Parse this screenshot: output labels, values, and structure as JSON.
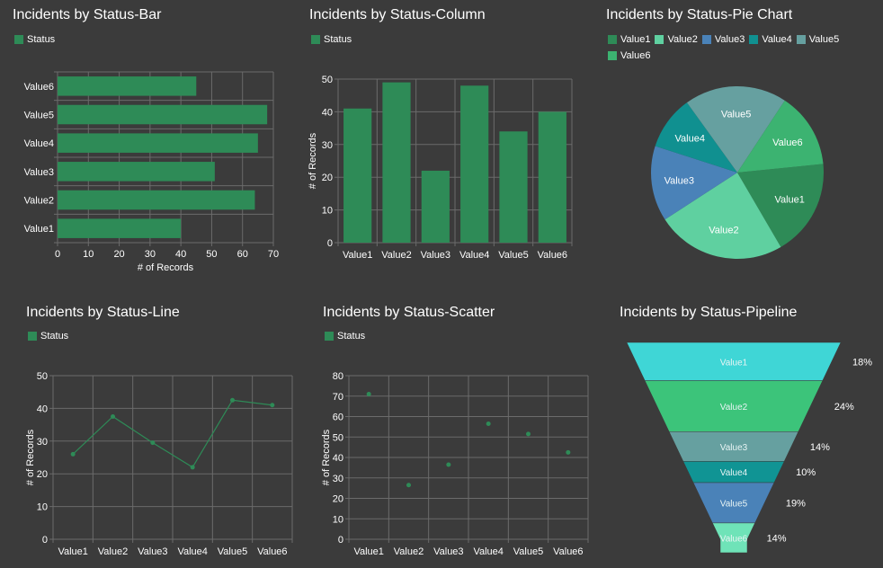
{
  "colors": {
    "background": "#3b3b3b",
    "grid": "#6b6b6b",
    "series": "#2e8b57",
    "text": "#ffffff"
  },
  "chart_data": [
    {
      "id": "bar",
      "type": "bar",
      "orientation": "horizontal",
      "title": "Incidents by Status-Bar",
      "legend": [
        "Status"
      ],
      "categories": [
        "Value1",
        "Value2",
        "Value3",
        "Value4",
        "Value5",
        "Value6"
      ],
      "values": [
        40,
        64,
        51,
        65,
        68,
        45
      ],
      "xlabel": "# of Records",
      "ylabel": "",
      "xlim": [
        0,
        70
      ],
      "ticks": [
        0,
        10,
        20,
        30,
        40,
        50,
        60,
        70
      ],
      "grid": true
    },
    {
      "id": "column",
      "type": "bar",
      "orientation": "vertical",
      "title": "Incidents by Status-Column",
      "legend": [
        "Status"
      ],
      "categories": [
        "Value1",
        "Value2",
        "Value3",
        "Value4",
        "Value5",
        "Value6"
      ],
      "values": [
        41,
        49,
        22,
        48,
        34,
        40
      ],
      "xlabel": "",
      "ylabel": "# of Records",
      "ylim": [
        0,
        50
      ],
      "ticks": [
        0,
        10,
        20,
        30,
        40,
        50
      ],
      "grid": true
    },
    {
      "id": "pie",
      "type": "pie",
      "title": "Incidents by Status-Pie Chart",
      "legend": [
        "Value1",
        "Value2",
        "Value3",
        "Value4",
        "Value5",
        "Value6"
      ],
      "slices": [
        {
          "label": "Value1",
          "value": 18,
          "color": "#2e8b57"
        },
        {
          "label": "Value2",
          "value": 24,
          "color": "#5fd0a0"
        },
        {
          "label": "Value3",
          "value": 14,
          "color": "#4a82b8"
        },
        {
          "label": "Value4",
          "value": 10,
          "color": "#109090"
        },
        {
          "label": "Value5",
          "value": 19,
          "color": "#66a0a0"
        },
        {
          "label": "Value6",
          "value": 14,
          "color": "#3cb371"
        }
      ]
    },
    {
      "id": "line",
      "type": "line",
      "title": "Incidents by Status-Line",
      "legend": [
        "Status"
      ],
      "categories": [
        "Value1",
        "Value2",
        "Value3",
        "Value4",
        "Value5",
        "Value6"
      ],
      "values": [
        26,
        37.5,
        29.5,
        22,
        42.5,
        41
      ],
      "xlabel": "",
      "ylabel": "# of Records",
      "ylim": [
        0,
        50
      ],
      "ticks": [
        0,
        10,
        20,
        30,
        40,
        50
      ],
      "grid": true
    },
    {
      "id": "scatter",
      "type": "scatter",
      "title": "Incidents by Status-Scatter",
      "legend": [
        "Status"
      ],
      "categories": [
        "Value1",
        "Value2",
        "Value3",
        "Value4",
        "Value5",
        "Value6"
      ],
      "values": [
        71,
        26.5,
        36.5,
        56.5,
        51.5,
        42.5
      ],
      "xlabel": "",
      "ylabel": "# of Records",
      "ylim": [
        0,
        80
      ],
      "ticks": [
        0,
        10,
        20,
        30,
        40,
        50,
        60,
        70,
        80
      ],
      "grid": true
    },
    {
      "id": "pipeline",
      "type": "funnel",
      "title": "Incidents by Status-Pipeline",
      "stages": [
        {
          "label": "Value1",
          "percent": "18%",
          "value": 18,
          "color": "#3fd6d6"
        },
        {
          "label": "Value2",
          "percent": "24%",
          "value": 24,
          "color": "#3cc47a"
        },
        {
          "label": "Value3",
          "percent": "14%",
          "value": 14,
          "color": "#66a0a0"
        },
        {
          "label": "Value4",
          "percent": "10%",
          "value": 10,
          "color": "#109494"
        },
        {
          "label": "Value5",
          "percent": "19%",
          "value": 19,
          "color": "#4a82b8"
        },
        {
          "label": "Value6",
          "percent": "14%",
          "value": 14,
          "color": "#6fe3b8"
        }
      ]
    }
  ]
}
